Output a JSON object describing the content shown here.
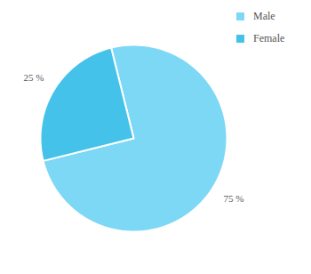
{
  "chart_data": {
    "type": "pie",
    "categories": [
      "Male",
      "Female"
    ],
    "values": [
      75,
      25
    ],
    "value_labels": [
      "75 %",
      "25 %"
    ],
    "colors": [
      "#7dd8f5",
      "#45c2ea"
    ],
    "data_labels": true,
    "legend": "top-right"
  }
}
